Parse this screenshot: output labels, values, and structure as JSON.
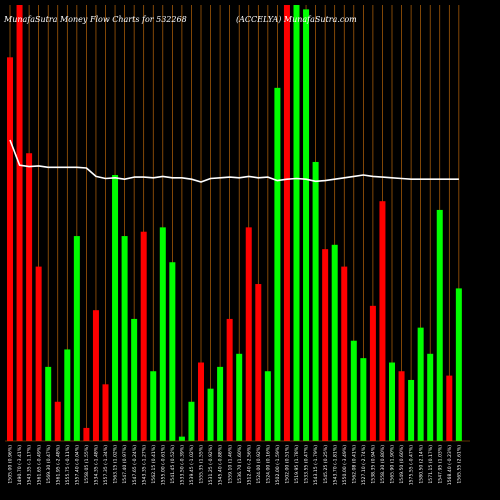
{
  "colors": {
    "background": "#000000",
    "up": "#00ff00",
    "down": "#ff0000",
    "gridline": "#b8650a",
    "price_line": "#ffffff",
    "text": "#ffffff"
  },
  "chart_data": {
    "type": "bar",
    "title_left": "MunafaSutra  Money Flow  Charts for 532268",
    "title_right": "(ACCELYA) MunafaSutra.com",
    "xlabel": "",
    "ylabel": "",
    "ylim": [
      0,
      100
    ],
    "grid": "vertical",
    "categories": [
      "1505.00 (0.96%)",
      "1490.70 (-3.41%)",
      "1543.35 (-1.17%)",
      "1561.65 (-0.49%)",
      "1569.30 (0.47%)",
      "1561.95 (-2.48%)",
      "1555.75 (-0.11%)",
      "1557.40 (-0.04%)",
      "1558.05 (1.55%)",
      "1534.35 (-1.48%)",
      "1557.35 (-1.34%)",
      "1563.15 (1.02%)",
      "1547.40 (0.97%)",
      "1547.65 (-0.24%)",
      "1543.35 (-1.27%)",
      "1562.15 (0.41%)",
      "1555.00 (-0.61%)",
      "1541.45 (0.52%)",
      "1533.50 (-0.39%)",
      "1539.45 (-1.02%)",
      "1555.35 (1.55%)",
      "1531.25 (-0.92%)",
      "1545.40 (-0.88%)",
      "1559.10 (1.46%)",
      "1536.70 (1.60%)",
      "1512.40 (-2.56%)",
      "1524.00 (0.92%)",
      "1524.00 (0.16%)",
      "1502.00 (-1.59%)",
      "1502.00 (0.51%)",
      "1519.95 (1.78%)",
      "1533.55 (0.47%)",
      "1543.15 (-1.79%)",
      "1545.25 (0.25%)",
      "1543.70 (-1.81%)",
      "1550.00 (-3.49%)",
      "1562.08 (0.41%)",
      "1527.10 (-2.74%)",
      "1538.35 (0.94%)",
      "1558.30 (0.80%)",
      "1565.90 (1.90%)",
      "1549.50 (0.60%)",
      "1575.55 (-0.47%)",
      "1580.50 (2.14%)",
      "1571.15 (0.17%)",
      "1547.95 (1.03%)",
      "1568.40 (-0.23%)",
      "1565.55 (2.61%)"
    ],
    "series": [
      {
        "direction": [
          "down",
          "down",
          "down",
          "down",
          "up",
          "down",
          "up",
          "up",
          "down",
          "down",
          "down",
          "up",
          "up",
          "up",
          "down",
          "up",
          "up",
          "up",
          "up",
          "up",
          "down",
          "up",
          "up",
          "down",
          "up",
          "down",
          "down",
          "up",
          "up",
          "down",
          "up",
          "up",
          "up",
          "down",
          "up",
          "down",
          "up",
          "up",
          "down",
          "down",
          "up",
          "down",
          "up",
          "up",
          "up",
          "up",
          "down",
          "up"
        ],
        "values": [
          88,
          100,
          66,
          40,
          17,
          9,
          21,
          47,
          3,
          30,
          13,
          61,
          47,
          28,
          48,
          16,
          49,
          41,
          1,
          9,
          18,
          12,
          17,
          28,
          20,
          49,
          36,
          16,
          81,
          100,
          100,
          99,
          64,
          44,
          45,
          40,
          23,
          19,
          31,
          55,
          18,
          16,
          14,
          26,
          20,
          53,
          15,
          35
        ]
      },
      {
        "values": [
          100,
          64,
          62,
          63,
          61,
          61,
          61,
          61,
          60,
          48,
          45,
          46,
          44,
          47,
          47,
          46,
          48,
          46,
          46,
          44,
          40,
          45,
          46,
          47,
          46,
          48,
          46,
          47,
          42,
          44,
          45,
          44,
          41,
          42,
          44,
          46,
          48,
          50,
          48,
          47,
          46,
          45,
          44,
          44,
          44,
          44,
          44,
          44
        ]
      }
    ]
  }
}
